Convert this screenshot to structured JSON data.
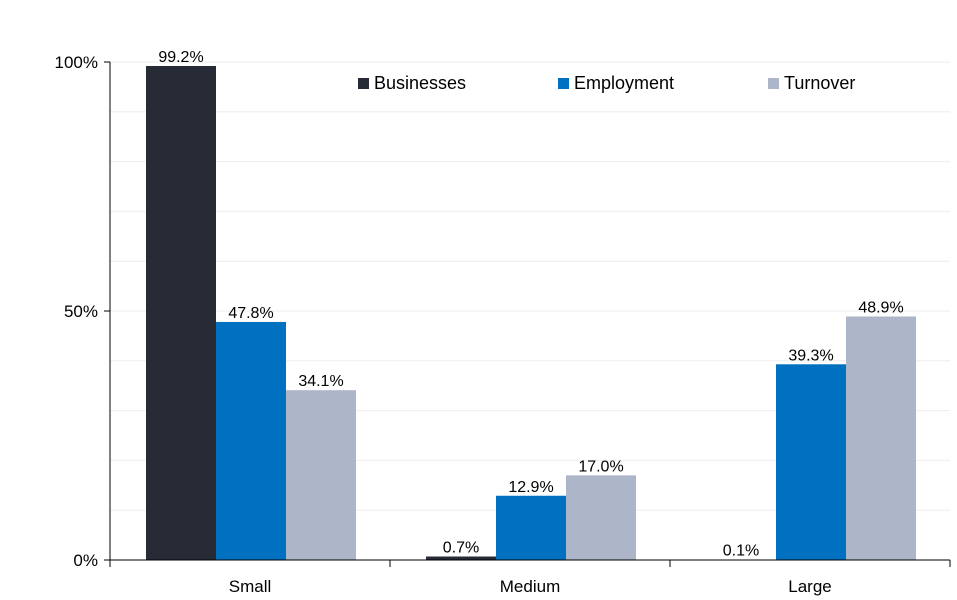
{
  "chart_data": {
    "type": "bar",
    "title": "",
    "xlabel": "",
    "ylabel": "",
    "categories": [
      "Small",
      "Medium",
      "Large"
    ],
    "series": [
      {
        "name": "Businesses",
        "values": [
          99.2,
          0.7,
          0.1
        ],
        "labels": [
          "99.2%",
          "0.7%",
          "0.1%"
        ],
        "color": "#262b36"
      },
      {
        "name": "Employment",
        "values": [
          47.8,
          12.9,
          39.3
        ],
        "labels": [
          "47.8%",
          "12.9%",
          "39.3%"
        ],
        "color": "#0070c0"
      },
      {
        "name": "Turnover",
        "values": [
          34.1,
          17.0,
          48.9
        ],
        "labels": [
          "34.1%",
          "17.0%",
          "48.9%"
        ],
        "color": "#adb6c9"
      }
    ],
    "ylim": [
      0,
      100
    ],
    "yticks": [
      0,
      50,
      100
    ],
    "ytick_labels": [
      "0%",
      "50%",
      "100%"
    ],
    "grid": true,
    "legend_position": "top-right",
    "colors": {
      "axis": "#000000",
      "grid": "#eeeeee"
    }
  }
}
